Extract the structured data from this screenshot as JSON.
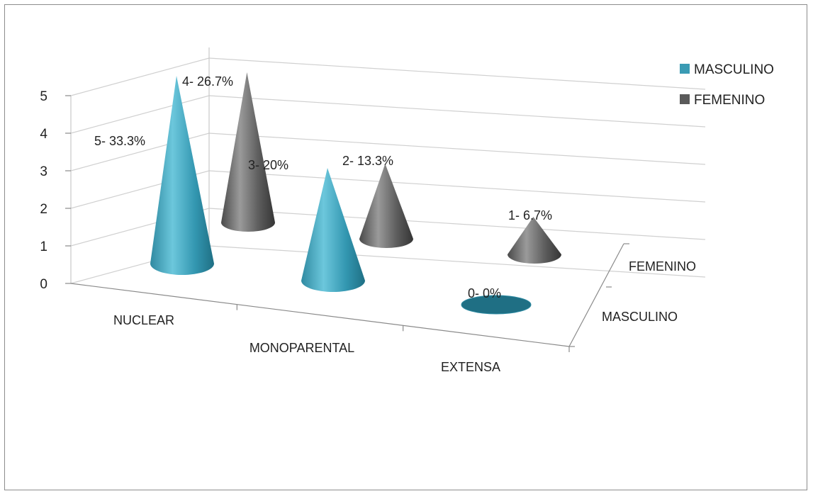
{
  "chart_data": {
    "type": "bar",
    "style": "3d-cone",
    "categories": [
      "NUCLEAR",
      "MONOPARENTAL",
      "EXTENSA"
    ],
    "depth_categories": [
      "MASCULINO",
      "FEMENINO"
    ],
    "series": [
      {
        "name": "MASCULINO",
        "values": [
          5,
          3,
          0
        ],
        "labels": [
          "5- 33.3%",
          "3- 20%",
          "0- 0%"
        ],
        "color": "#3a9bb4"
      },
      {
        "name": "FEMENINO",
        "values": [
          4,
          2,
          1
        ],
        "labels": [
          "4- 26.7%",
          "2-  13.3%",
          "1- 6.7%"
        ],
        "color": "#5a5a5a"
      }
    ],
    "yticks": [
      "0",
      "1",
      "2",
      "3",
      "4",
      "5"
    ],
    "ylim": [
      0,
      5
    ],
    "grid": true,
    "legend": "top-right"
  }
}
